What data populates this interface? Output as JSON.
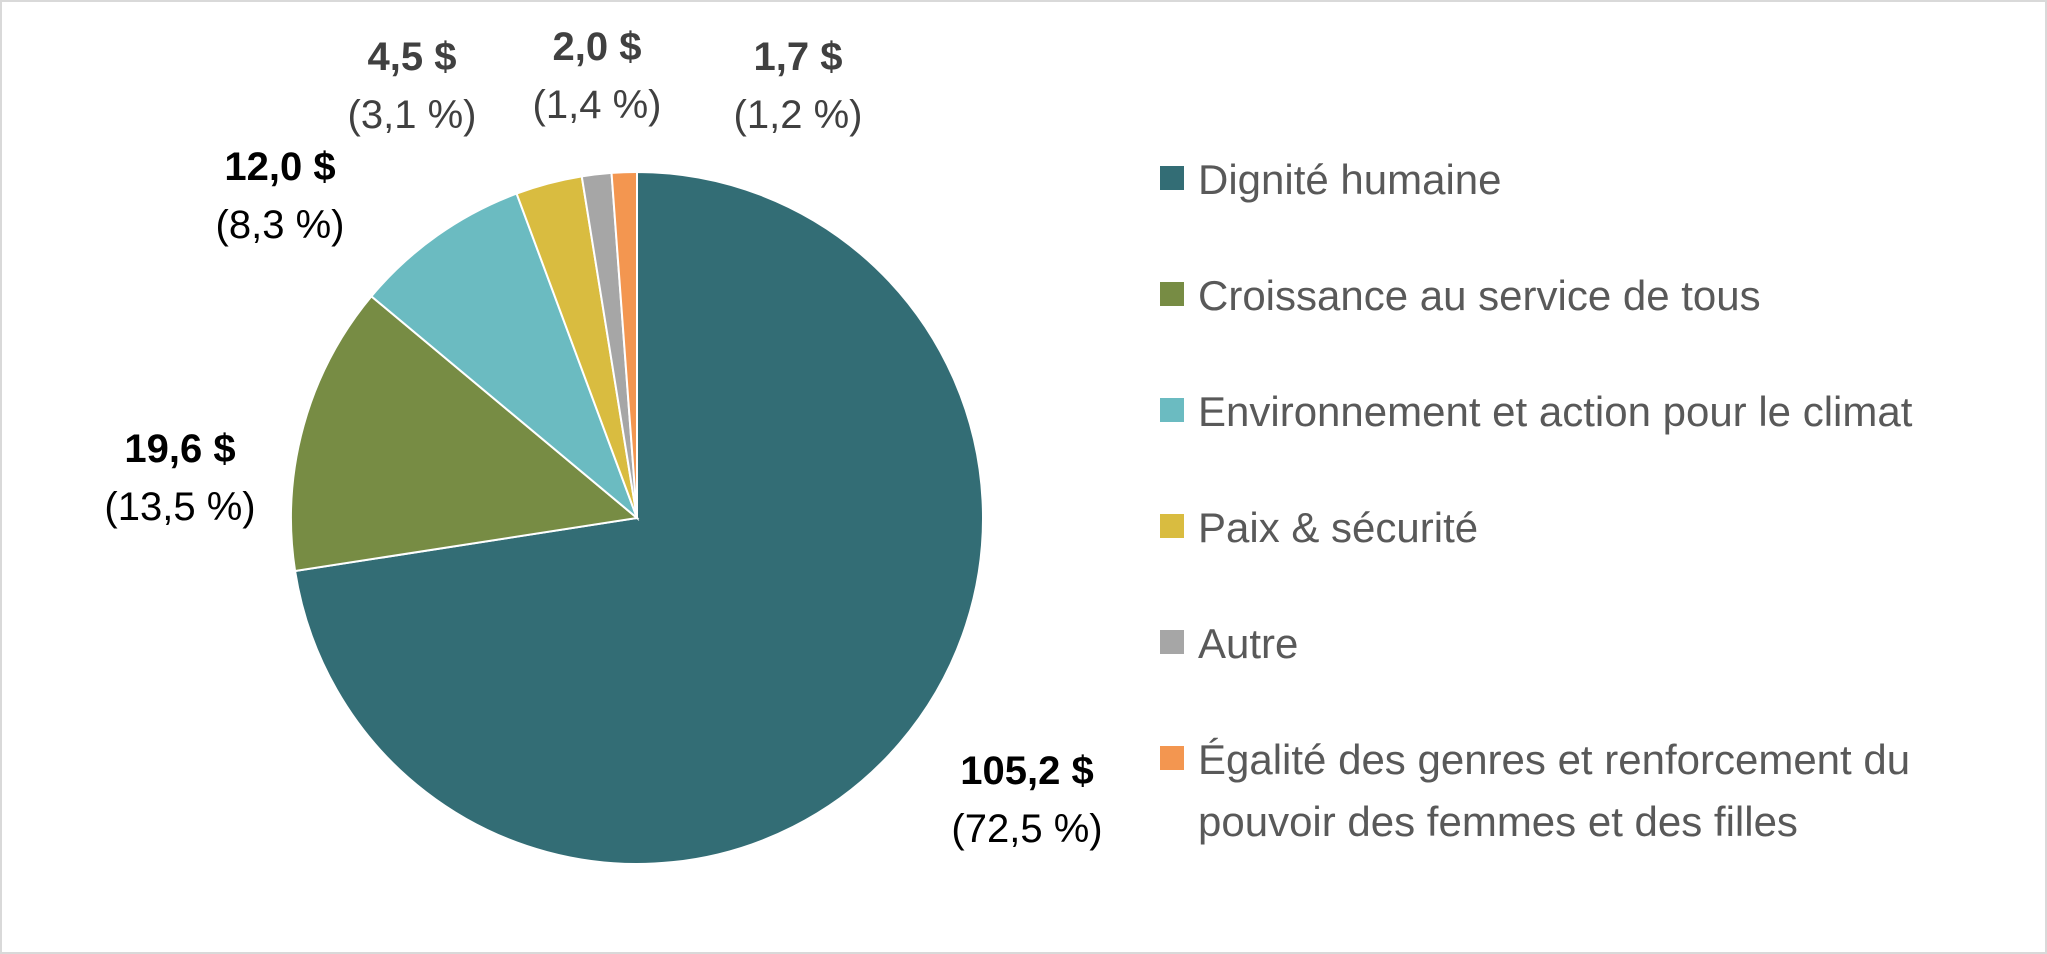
{
  "chart_data": {
    "type": "pie",
    "title": "",
    "start_angle_deg": 0,
    "direction": "clockwise",
    "legend_position": "right",
    "slices": [
      {
        "label": "Dignité humaine",
        "value": 105.2,
        "value_label": "105,2 $",
        "percent_label": "(72,5 %)",
        "color": "#336d75",
        "label_color": "#000000"
      },
      {
        "label": "Croissance au service de tous",
        "value": 19.6,
        "value_label": "19,6 $",
        "percent_label": "(13,5 %)",
        "color": "#778c44",
        "label_color": "#000000"
      },
      {
        "label": "Environnement et action pour le climat",
        "value": 12.0,
        "value_label": "12,0 $",
        "percent_label": "(8,3 %)",
        "color": "#6bbbc1",
        "label_color": "#000000"
      },
      {
        "label": "Paix & sécurité",
        "value": 4.5,
        "value_label": "4,5 $",
        "percent_label": "(3,1 %)",
        "color": "#d9bc40",
        "label_color": "#404040"
      },
      {
        "label": "Autre",
        "value": 2.0,
        "value_label": "2,0 $",
        "percent_label": "(1,4 %)",
        "color": "#a6a6a6",
        "label_color": "#404040"
      },
      {
        "label": "Égalité des genres et renforcement du pouvoir des femmes et des filles",
        "value": 1.7,
        "value_label": "1,7 $",
        "percent_label": "(1,2 %)",
        "color": "#f39650",
        "label_color": "#404040"
      }
    ]
  }
}
